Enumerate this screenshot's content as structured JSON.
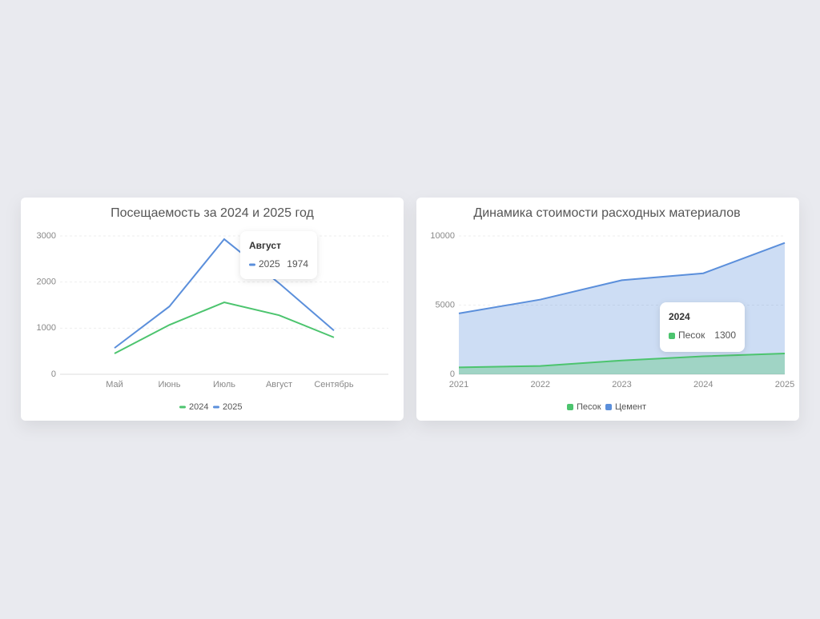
{
  "chart_data": [
    {
      "type": "line",
      "title": "Посещаемость за 2024 и 2025 год",
      "categories": [
        "Май",
        "Июнь",
        "Июль",
        "Август",
        "Сентябрь"
      ],
      "series": [
        {
          "name": "2024",
          "color": "#4cc46e",
          "values": [
            450,
            1070,
            1560,
            1280,
            800
          ]
        },
        {
          "name": "2025",
          "color": "#5b8fdb",
          "values": [
            570,
            1470,
            2930,
            1974,
            950
          ]
        }
      ],
      "ylim": [
        0,
        3000
      ],
      "yticks": [
        0,
        1000,
        2000,
        3000
      ],
      "grid": true
    },
    {
      "type": "area",
      "title": "Динамика стоимости расходных материалов",
      "x": [
        2021,
        2022,
        2023,
        2024,
        2025
      ],
      "series": [
        {
          "name": "Песок",
          "color": "#4cc46e",
          "values": [
            500,
            600,
            1000,
            1300,
            1500
          ]
        },
        {
          "name": "Цемент",
          "color": "#5b8fdb",
          "values": [
            4400,
            5400,
            6800,
            7300,
            9500
          ]
        }
      ],
      "xlim": [
        2021,
        2025
      ],
      "xticks": [
        2021,
        2022,
        2023,
        2024,
        2025
      ],
      "ylim": [
        0,
        10000
      ],
      "yticks": [
        0,
        5000,
        10000
      ],
      "grid": true
    }
  ]
}
